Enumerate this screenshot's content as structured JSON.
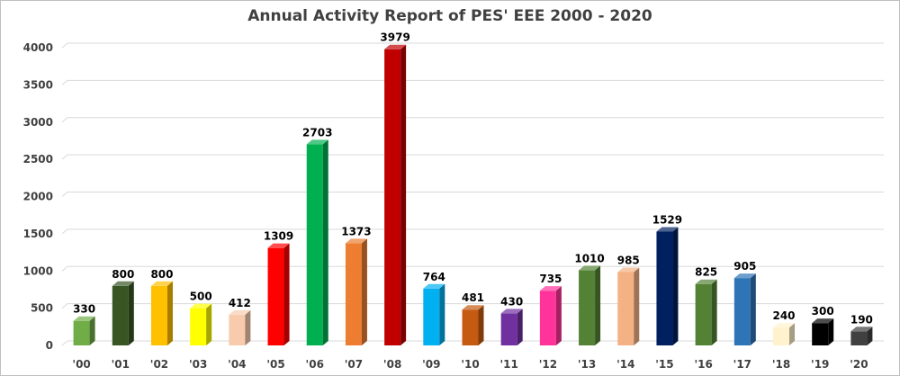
{
  "chart_data": {
    "type": "bar",
    "title": "Annual Activity Report of PES' EEE 2000 - 2020",
    "xlabel": "",
    "ylabel": "",
    "categories": [
      "'00",
      "'01",
      "'02",
      "'03",
      "'04",
      "'05",
      "'06",
      "'07",
      "'08",
      "'09",
      "'10",
      "'11",
      "'12",
      "'13",
      "'14",
      "'15",
      "'16",
      "'17",
      "'18",
      "'19",
      "'20"
    ],
    "values": [
      330,
      800,
      800,
      500,
      412,
      1309,
      2703,
      1373,
      3979,
      764,
      481,
      430,
      735,
      1010,
      985,
      1529,
      825,
      905,
      240,
      300,
      190
    ],
    "value_labels": [
      "330",
      "800",
      "800",
      "500",
      "412",
      "1309",
      "2703",
      "1373",
      "3979",
      "764",
      "481",
      "430",
      "735",
      "1010",
      "985",
      "1529",
      "825",
      "905",
      "240",
      "300",
      "190"
    ],
    "colors": [
      "#70ad47",
      "#375623",
      "#ffc000",
      "#ffff00",
      "#f8cbad",
      "#ff0000",
      "#00b050",
      "#ed7d31",
      "#c00000",
      "#00b0f0",
      "#c55a11",
      "#7030a0",
      "#ff3399",
      "#548235",
      "#f4b183",
      "#002060",
      "#548235",
      "#2e75b6",
      "#fff2cc",
      "#000000",
      "#404040"
    ],
    "ylim": [
      0,
      4000
    ],
    "yticks": [
      0,
      500,
      1000,
      1500,
      2000,
      2500,
      3000,
      3500,
      4000
    ],
    "ytick_labels": [
      "0",
      "500",
      "1000",
      "1500",
      "2000",
      "2500",
      "3000",
      "3500",
      "4000"
    ],
    "grid": true,
    "style": "3d-column",
    "legend": "none"
  }
}
